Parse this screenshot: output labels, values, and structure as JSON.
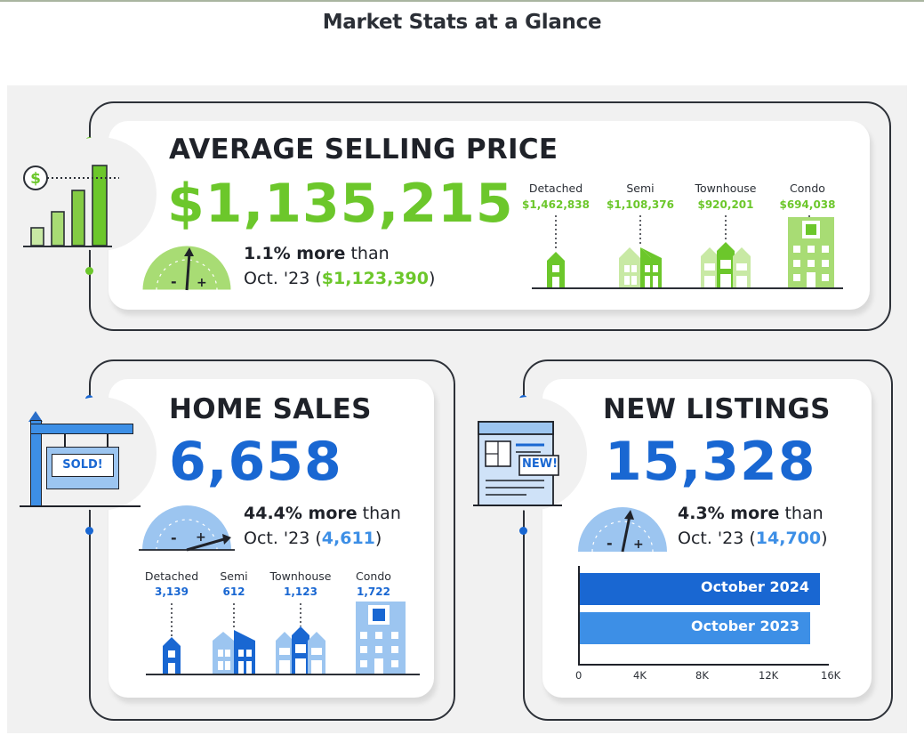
{
  "page_title": "Market Stats at a Glance",
  "colors": {
    "green": "#6cc72b",
    "light_green": "#c8e9a4",
    "blue": "#1967d2",
    "light_blue": "#9cc5f0",
    "mid_blue": "#3d8fe6"
  },
  "avg_price": {
    "heading": "AVERAGE SELLING PRICE",
    "value": "$1,135,215",
    "change_bold": "1.1% more",
    "change_rest": " than",
    "compare_prefix": "Oct. '23 (",
    "compare_value": "$1,123,390",
    "compare_suffix": ")",
    "types": [
      {
        "label": "Detached",
        "value": "$1,462,838"
      },
      {
        "label": "Semi",
        "value": "$1,108,376"
      },
      {
        "label": "Townhouse",
        "value": "$920,201"
      },
      {
        "label": "Condo",
        "value": "$694,038"
      }
    ],
    "icons": [
      "dollar-chart-icon",
      "gauge-icon",
      "house-icon",
      "semi-house-icon",
      "townhouse-icon",
      "condo-icon"
    ]
  },
  "home_sales": {
    "heading": "HOME SALES",
    "value": "6,658",
    "sign_text": "SOLD!",
    "change_bold": "44.4% more",
    "change_rest": " than",
    "compare_prefix": "Oct. '23 (",
    "compare_value": "4,611",
    "compare_suffix": ")",
    "types": [
      {
        "label": "Detached",
        "value": "3,139"
      },
      {
        "label": "Semi",
        "value": "612"
      },
      {
        "label": "Townhouse",
        "value": "1,123"
      },
      {
        "label": "Condo",
        "value": "1,722"
      }
    ],
    "icons": [
      "sold-sign-icon",
      "gauge-icon",
      "house-icon",
      "semi-house-icon",
      "townhouse-icon",
      "condo-icon"
    ]
  },
  "new_listings": {
    "heading": "NEW LISTINGS",
    "value": "15,328",
    "doc_badge": "NEW!",
    "change_bold": "4.3% more",
    "change_rest": " than",
    "compare_prefix": "Oct. '23 (",
    "compare_value": "14,700",
    "compare_suffix": ")",
    "icons": [
      "listing-document-icon",
      "gauge-icon"
    ]
  },
  "chart_data": {
    "type": "bar",
    "orientation": "horizontal",
    "categories": [
      "October 2024",
      "October 2023"
    ],
    "values": [
      15328,
      14700
    ],
    "xlim": [
      0,
      16000
    ],
    "ticks": [
      "0",
      "4K",
      "8K",
      "12K",
      "16K"
    ],
    "tick_values": [
      0,
      4000,
      8000,
      12000,
      16000
    ],
    "colors": [
      "#1967d2",
      "#3d8fe6"
    ],
    "grid": false
  }
}
